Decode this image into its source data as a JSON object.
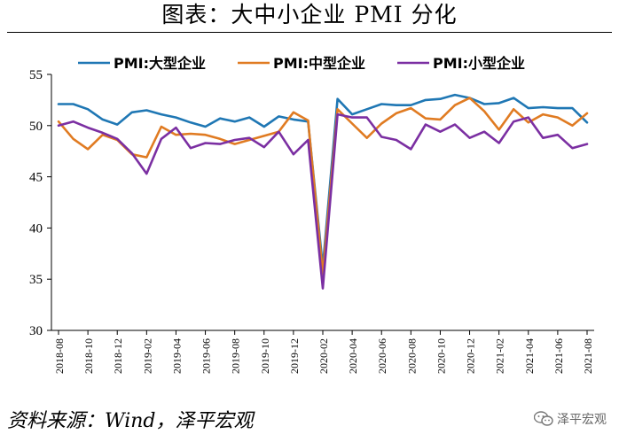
{
  "title": "图表：大中小企业 PMI 分化",
  "source": "资料来源：Wind，泽平宏观",
  "watermark": "泽平宏观",
  "chart_data": {
    "type": "line",
    "title": "",
    "xlabel": "",
    "ylabel": "",
    "ylim": [
      30,
      55
    ],
    "yticks": [
      30,
      35,
      40,
      45,
      50,
      55
    ],
    "x": [
      "2018-08",
      "2018-09",
      "2018-10",
      "2018-11",
      "2018-12",
      "2019-01",
      "2019-02",
      "2019-03",
      "2019-04",
      "2019-05",
      "2019-06",
      "2019-07",
      "2019-08",
      "2019-09",
      "2019-10",
      "2019-11",
      "2019-12",
      "2020-01",
      "2020-02",
      "2020-03",
      "2020-04",
      "2020-05",
      "2020-06",
      "2020-07",
      "2020-08",
      "2020-09",
      "2020-10",
      "2020-11",
      "2020-12",
      "2021-01",
      "2021-02",
      "2021-03",
      "2021-04",
      "2021-05",
      "2021-06",
      "2021-07",
      "2021-08"
    ],
    "xtick_labels": [
      "2018-08",
      "2018-10",
      "2018-12",
      "2019-02",
      "2019-04",
      "2019-06",
      "2019-08",
      "2019-10",
      "2019-12",
      "2020-02",
      "2020-04",
      "2020-06",
      "2020-08",
      "2020-10",
      "2020-12",
      "2021-02",
      "2021-04",
      "2021-06",
      "2021-08"
    ],
    "legend_position": "top",
    "grid": false,
    "series": [
      {
        "name": "PMI:大型企业",
        "color": "#1f77b4",
        "values": [
          52.1,
          52.1,
          51.6,
          50.6,
          50.1,
          51.3,
          51.5,
          51.1,
          50.8,
          50.3,
          49.9,
          50.7,
          50.4,
          50.8,
          49.9,
          50.9,
          50.6,
          50.4,
          36.2,
          52.6,
          51.1,
          51.6,
          52.1,
          52.0,
          52.0,
          52.5,
          52.6,
          53.0,
          52.7,
          52.1,
          52.2,
          52.7,
          51.7,
          51.8,
          51.7,
          51.7,
          50.3
        ]
      },
      {
        "name": "PMI:中型企业",
        "color": "#e07b22",
        "values": [
          50.4,
          48.7,
          47.7,
          49.1,
          48.6,
          47.2,
          46.9,
          49.9,
          49.1,
          49.2,
          49.1,
          48.7,
          48.2,
          48.6,
          49.0,
          49.4,
          51.3,
          50.5,
          35.5,
          51.6,
          50.2,
          48.8,
          50.2,
          51.2,
          51.7,
          50.7,
          50.6,
          52.0,
          52.7,
          51.4,
          49.6,
          51.6,
          50.3,
          51.1,
          50.8,
          50.0,
          51.2
        ]
      },
      {
        "name": "PMI:小型企业",
        "color": "#7b2fa2",
        "values": [
          50.0,
          50.4,
          49.8,
          49.3,
          48.7,
          47.3,
          45.3,
          48.7,
          49.8,
          47.8,
          48.3,
          48.2,
          48.6,
          48.8,
          47.9,
          49.4,
          47.2,
          48.6,
          34.1,
          51.1,
          50.8,
          50.8,
          48.9,
          48.6,
          47.7,
          50.1,
          49.4,
          50.1,
          48.8,
          49.4,
          48.3,
          50.4,
          50.8,
          48.8,
          49.1,
          47.8,
          48.2
        ]
      }
    ]
  }
}
